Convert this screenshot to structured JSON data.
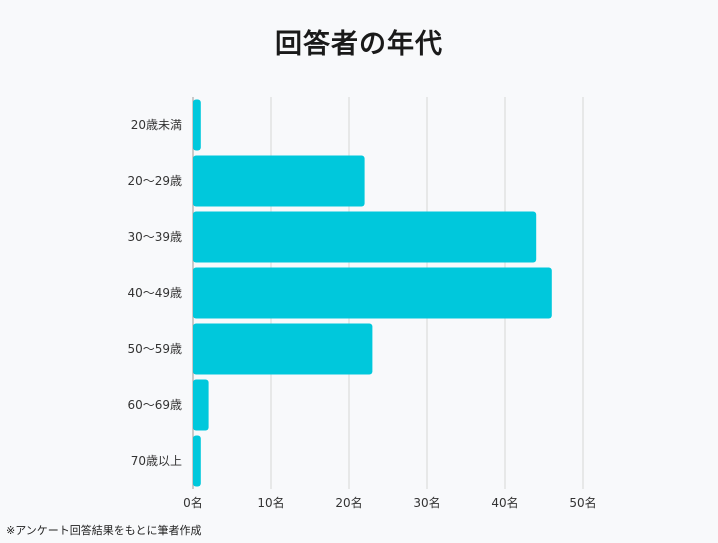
{
  "chart_data": {
    "type": "bar",
    "orientation": "horizontal",
    "title": "回答者の年代",
    "categories": [
      "20歳未満",
      "20～29歳",
      "30～39歳",
      "40～49歳",
      "50～59歳",
      "60～69歳",
      "70歳以上"
    ],
    "values": [
      1,
      22,
      44,
      46,
      23,
      2,
      1
    ],
    "unit": "名",
    "xlim": [
      0,
      50
    ],
    "xticks": [
      "0名",
      "10名",
      "20名",
      "30名",
      "40名",
      "50名"
    ],
    "grid": true,
    "color": "#00c8dc"
  },
  "footnote": "※アンケート回答結果をもとに筆者作成"
}
